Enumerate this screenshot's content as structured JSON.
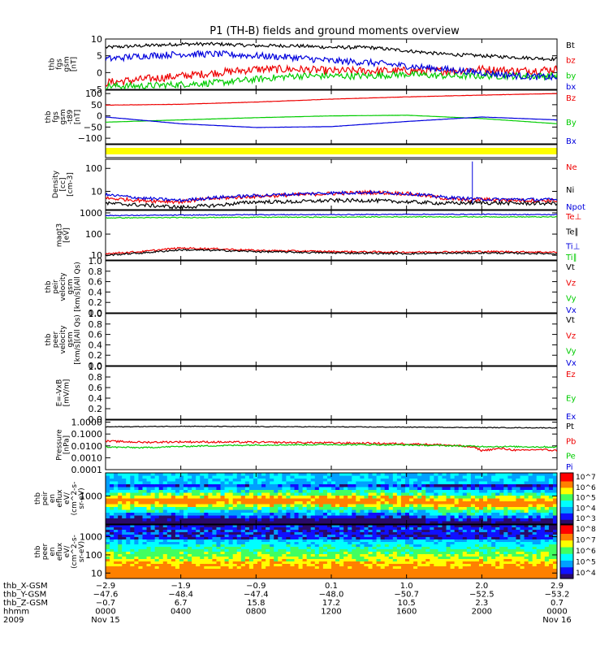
{
  "title": "P1 (TH-B) fields and ground moments overview",
  "colors": {
    "black": "#000000",
    "red": "#ee0000",
    "green": "#00cc00",
    "blue": "#0000dd",
    "yellow": "#ffff00",
    "hot": "#ff0000"
  },
  "chart_data": [
    {
      "type": "line",
      "panel": "fgs",
      "ylabel": [
        "thb",
        "fgs",
        "gsm",
        "[nT]"
      ],
      "ylim": [
        -5,
        10
      ],
      "yticks": [
        "10",
        "5",
        "0",
        "−5"
      ],
      "ytick_values": [
        10,
        5,
        0,
        -5
      ],
      "legend": [
        {
          "label": "Bt",
          "color": "black"
        },
        {
          "label": "bz",
          "color": "red"
        },
        {
          "label": "by",
          "color": "green"
        },
        {
          "label": "bx",
          "color": "blue"
        }
      ],
      "series": [
        {
          "name": "Bt",
          "color": "black",
          "noise": 0.5,
          "x": [
            0,
            2,
            4,
            6,
            8,
            10,
            12,
            14,
            16,
            18,
            20,
            22,
            24
          ],
          "y": [
            7.5,
            8.0,
            8.5,
            8.5,
            8.0,
            8.0,
            7.5,
            7.5,
            6.5,
            5.5,
            5.0,
            4.5,
            4.0
          ]
        },
        {
          "name": "bz",
          "color": "red",
          "noise": 1.2,
          "x": [
            0,
            2,
            4,
            6,
            8,
            10,
            12,
            14,
            16,
            18,
            20,
            22,
            24
          ],
          "y": [
            -3.0,
            -2.0,
            -1.0,
            0.0,
            1.0,
            1.0,
            0.5,
            0.5,
            0.5,
            0.5,
            1.0,
            0.5,
            1.0
          ]
        },
        {
          "name": "by",
          "color": "green",
          "noise": 1.0,
          "x": [
            0,
            2,
            4,
            6,
            8,
            10,
            12,
            14,
            16,
            18,
            20,
            22,
            24
          ],
          "y": [
            -4.0,
            -4.0,
            -3.5,
            -3.0,
            -2.0,
            -1.0,
            -1.0,
            -1.0,
            -0.5,
            -1.0,
            -1.0,
            -1.0,
            -1.0
          ]
        },
        {
          "name": "bx",
          "color": "blue",
          "noise": 1.0,
          "x": [
            0,
            2,
            4,
            6,
            8,
            10,
            12,
            14,
            16,
            18,
            20,
            22,
            24
          ],
          "y": [
            4.0,
            5.0,
            5.5,
            5.5,
            5.0,
            4.5,
            3.5,
            3.0,
            2.0,
            1.0,
            0.0,
            -1.0,
            -1.5
          ]
        }
      ]
    },
    {
      "type": "line",
      "panel": "fgs_t89",
      "ylabel": [
        "thb",
        "fgs",
        "gsm",
        "-t89",
        "[nT]"
      ],
      "ylim": [
        -125,
        115
      ],
      "yticks": [
        "100",
        "50",
        "0",
        "−50",
        "−100"
      ],
      "ytick_values": [
        100,
        50,
        0,
        -50,
        -100
      ],
      "legend": [
        {
          "label": "Bz",
          "color": "red"
        },
        {
          "label": "By",
          "color": "green"
        },
        {
          "label": "Bx",
          "color": "blue"
        }
      ],
      "series": [
        {
          "name": "Bz",
          "color": "red",
          "noise": 0.5,
          "x": [
            0,
            4,
            8,
            12,
            16,
            20,
            24
          ],
          "y": [
            48,
            52,
            62,
            75,
            85,
            93,
            100
          ]
        },
        {
          "name": "By",
          "color": "green",
          "noise": 0.3,
          "x": [
            0,
            4,
            8,
            12,
            16,
            20,
            24
          ],
          "y": [
            -28,
            -18,
            -8,
            0,
            3,
            -12,
            -35
          ]
        },
        {
          "name": "Bx",
          "color": "blue",
          "noise": 0.3,
          "x": [
            0,
            4,
            8,
            12,
            16,
            20,
            24
          ],
          "y": [
            -5,
            -35,
            -52,
            -48,
            -25,
            -5,
            -18
          ]
        }
      ]
    },
    {
      "type": "line",
      "panel": "density",
      "ylabel": [
        "Density",
        "[cc]",
        "[cm-3]"
      ],
      "log": true,
      "ylim": [
        1.6,
        250
      ],
      "yticks": [
        "100",
        "10"
      ],
      "ytick_values": [
        100,
        10
      ],
      "legend": [
        {
          "label": "Ne",
          "color": "red"
        },
        {
          "label": "Ni",
          "color": "black"
        },
        {
          "label": "Npot",
          "color": "blue"
        }
      ],
      "series": [
        {
          "name": "Ne",
          "color": "red",
          "noise": 0.08,
          "x": [
            0,
            2,
            4,
            6,
            8,
            10,
            12,
            14,
            16,
            18,
            19.4,
            20,
            22,
            24
          ],
          "y": [
            5,
            4,
            3.5,
            5,
            6,
            7,
            8,
            9,
            8,
            5,
            4,
            4.5,
            4,
            4
          ]
        },
        {
          "name": "Ni",
          "color": "black",
          "noise": 0.08,
          "x": [
            0,
            2,
            4,
            6,
            8,
            10,
            12,
            14,
            16,
            18,
            20,
            22,
            24
          ],
          "y": [
            3,
            2.5,
            2,
            2.5,
            3.5,
            3.5,
            4,
            4,
            3.5,
            3,
            3.2,
            3,
            3
          ]
        },
        {
          "name": "Npot",
          "color": "blue",
          "noise": 0.07,
          "x": [
            0,
            2,
            4,
            6,
            8,
            10,
            12,
            14,
            16,
            18,
            20,
            22,
            24
          ],
          "y": [
            7,
            5,
            4,
            5.5,
            6.5,
            7.5,
            8.5,
            9,
            8,
            5.5,
            4.5,
            4.5,
            4.3
          ]
        }
      ],
      "spike": {
        "x": 19.5,
        "y_top": 200,
        "y_bottom": 3,
        "color": "blue"
      }
    },
    {
      "type": "line",
      "panel": "temperature",
      "ylabel": [
        "magt3",
        "[eV]"
      ],
      "log": true,
      "ylim": [
        6,
        1300
      ],
      "yticks": [
        "1000",
        "100",
        "10"
      ],
      "ytick_values": [
        1000,
        100,
        10
      ],
      "legend": [
        {
          "label": "Te⊥",
          "color": "red"
        },
        {
          "label": "Te∥",
          "color": "black"
        },
        {
          "label": "Ti⊥",
          "color": "blue"
        },
        {
          "label": "Ti∥",
          "color": "green"
        }
      ],
      "series": [
        {
          "name": "Te⊥",
          "color": "red",
          "noise": 0.04,
          "x": [
            0,
            2,
            4,
            6,
            8,
            10,
            12,
            16,
            20,
            24
          ],
          "y": [
            12,
            15,
            22,
            20,
            17,
            16,
            15,
            14,
            15,
            14
          ]
        },
        {
          "name": "Te∥",
          "color": "black",
          "noise": 0.04,
          "x": [
            0,
            2,
            4,
            6,
            8,
            10,
            12,
            16,
            20,
            24
          ],
          "y": [
            10,
            13,
            18,
            17,
            15,
            14,
            13,
            12,
            13,
            12
          ]
        },
        {
          "name": "Ti⊥",
          "color": "blue",
          "noise": 0.02,
          "x": [
            0,
            4,
            8,
            12,
            16,
            20,
            24
          ],
          "y": [
            750,
            780,
            820,
            820,
            850,
            850,
            820
          ]
        },
        {
          "name": "Ti∥",
          "color": "green",
          "noise": 0.02,
          "x": [
            0,
            4,
            8,
            12,
            16,
            20,
            24
          ],
          "y": [
            580,
            600,
            620,
            630,
            650,
            650,
            640
          ]
        }
      ]
    },
    {
      "type": "line",
      "panel": "peir_velocity",
      "ylabel": [
        "thb",
        "peir",
        "velocity",
        "gsm",
        "[km/s](All Qs)"
      ],
      "ylim": [
        0,
        1
      ],
      "yticks": [
        "1.0",
        "0.8",
        "0.6",
        "0.4",
        "0.2",
        "0.0"
      ],
      "ytick_values": [
        1.0,
        0.8,
        0.6,
        0.4,
        0.2,
        0.0
      ],
      "legend": [
        {
          "label": "Vt",
          "color": "black"
        },
        {
          "label": "Vz",
          "color": "red"
        },
        {
          "label": "Vy",
          "color": "green"
        },
        {
          "label": "Vx",
          "color": "blue"
        }
      ],
      "series": []
    },
    {
      "type": "line",
      "panel": "peer_velocity",
      "ylabel": [
        "thb",
        "peer",
        "velocity",
        "gsm",
        "[km/s](All Qs)"
      ],
      "ylim": [
        0,
        1
      ],
      "yticks": [
        "1.0",
        "0.8",
        "0.6",
        "0.4",
        "0.2",
        "0.0"
      ],
      "ytick_values": [
        1.0,
        0.8,
        0.6,
        0.4,
        0.2,
        0.0
      ],
      "legend": [
        {
          "label": "Vt",
          "color": "black"
        },
        {
          "label": "Vz",
          "color": "red"
        },
        {
          "label": "Vy",
          "color": "green"
        },
        {
          "label": "Vx",
          "color": "blue"
        }
      ],
      "series": []
    },
    {
      "type": "line",
      "panel": "efield",
      "ylabel": [
        "E=-VxB",
        "[mV/m]"
      ],
      "ylim": [
        0,
        1
      ],
      "yticks": [
        "1.0",
        "0.8",
        "0.6",
        "0.4",
        "0.2",
        "0.0"
      ],
      "ytick_values": [
        1.0,
        0.8,
        0.6,
        0.4,
        0.2,
        0.0
      ],
      "legend": [
        {
          "label": "Ez",
          "color": "red"
        },
        {
          "label": "Ey",
          "color": "green"
        },
        {
          "label": "Ex",
          "color": "blue"
        }
      ],
      "series": []
    },
    {
      "type": "line",
      "panel": "pressure",
      "ylabel": [
        "Pressure",
        "[nPa]"
      ],
      "log": true,
      "ylim": [
        0.0001,
        1.5
      ],
      "yticks": [
        "1.0000",
        "0.1000",
        "0.0100",
        "0.0010",
        "0.0001"
      ],
      "ytick_values": [
        1,
        0.1,
        0.01,
        0.001,
        0.0001
      ],
      "legend": [
        {
          "label": "Pt",
          "color": "black"
        },
        {
          "label": "Pb",
          "color": "red"
        },
        {
          "label": "Pe",
          "color": "green"
        },
        {
          "label": "Pi",
          "color": "blue"
        }
      ],
      "series": [
        {
          "name": "Pt",
          "color": "black",
          "noise": 0.03,
          "x": [
            0,
            4,
            8,
            12,
            16,
            20,
            24
          ],
          "y": [
            0.4,
            0.45,
            0.42,
            0.4,
            0.38,
            0.35,
            0.33
          ]
        },
        {
          "name": "Pb",
          "color": "red",
          "noise": 0.08,
          "x": [
            0,
            2,
            4,
            8,
            12,
            16,
            18,
            19.5,
            20,
            21,
            22,
            23,
            24
          ],
          "y": [
            0.025,
            0.02,
            0.022,
            0.02,
            0.018,
            0.015,
            0.012,
            0.008,
            0.004,
            0.006,
            0.004,
            0.005,
            0.004
          ]
        },
        {
          "name": "Pe",
          "color": "green",
          "noise": 0.06,
          "x": [
            0,
            2,
            4,
            8,
            12,
            16,
            20,
            24
          ],
          "y": [
            0.008,
            0.007,
            0.009,
            0.012,
            0.013,
            0.012,
            0.009,
            0.008
          ]
        }
      ]
    },
    {
      "type": "heatmap",
      "panel": "peir_en_eflux",
      "ylabel": [
        "thb",
        "peir",
        "en",
        "eflux",
        "eV/",
        "(cm^2-s-",
        "sr-eV)"
      ],
      "log": true,
      "ylim": [
        20,
        25000
      ],
      "yticks": [
        "1000"
      ],
      "ytick_values": [
        1000
      ],
      "colorbar": {
        "ticks": [
          "10^7",
          "10^6",
          "10^5",
          "10^4",
          "10^3"
        ]
      }
    },
    {
      "type": "heatmap",
      "panel": "peer_en_eflux",
      "ylabel": [
        "thb",
        "peer",
        "en",
        "eflux",
        "eV/",
        "(cm^2-s-",
        "sr-eV)"
      ],
      "log": true,
      "ylim": [
        5,
        4500
      ],
      "yticks": [
        "1000",
        "100",
        "10"
      ],
      "ytick_values": [
        1000,
        100,
        10
      ],
      "colorbar": {
        "ticks": [
          "10^8",
          "10^7",
          "10^6",
          "10^5",
          "10^4"
        ]
      }
    }
  ],
  "xaxis": {
    "range_hours": [
      0,
      24
    ],
    "tick_hours": [
      0,
      4,
      8,
      12,
      16,
      20,
      24
    ],
    "rows": [
      {
        "label": "thb_X-GSM",
        "values": [
          "−2.9",
          "−1.9",
          "−0.9",
          "0.1",
          "1.0",
          "2.0",
          "2.9"
        ]
      },
      {
        "label": "thb_Y-GSM",
        "values": [
          "−47.6",
          "−48.4",
          "−47.4",
          "−48.0",
          "−50.7",
          "−52.5",
          "−53.2"
        ]
      },
      {
        "label": "thb_Z-GSM",
        "values": [
          "−0.7",
          "6.7",
          "15.8",
          "17.2",
          "10.5",
          "2.3",
          "0.7"
        ]
      },
      {
        "label": "hhmm",
        "values": [
          "0000",
          "0400",
          "0800",
          "1200",
          "1600",
          "2000",
          "0000"
        ]
      },
      {
        "label": "2009",
        "values": [
          "Nov 15",
          "",
          "",
          "",
          "",
          "",
          "Nov 16"
        ]
      }
    ]
  }
}
